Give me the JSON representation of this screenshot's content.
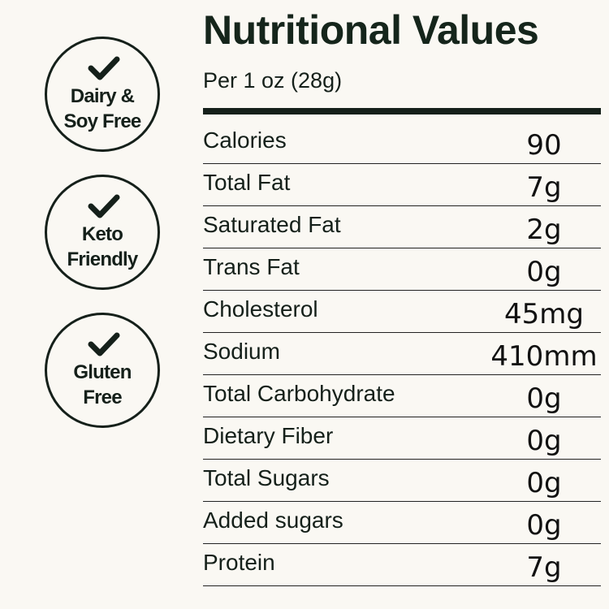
{
  "badges": [
    {
      "line1": "Dairy &",
      "line2": "Soy Free",
      "icon": "check-icon"
    },
    {
      "line1": "Keto",
      "line2": "Friendly",
      "icon": "check-icon"
    },
    {
      "line1": "Gluten",
      "line2": "Free",
      "icon": "check-icon"
    }
  ],
  "title": "Nutritional Values",
  "serving": "Per 1 oz (28g)",
  "rows": [
    {
      "name": "Calories",
      "value": "90"
    },
    {
      "name": "Total Fat",
      "value": "7g"
    },
    {
      "name": "Saturated Fat",
      "value": "2g"
    },
    {
      "name": "Trans Fat",
      "value": "0g"
    },
    {
      "name": "Cholesterol",
      "value": "45mg"
    },
    {
      "name": "Sodium",
      "value": "410mm"
    },
    {
      "name": "Total Carbohydrate",
      "value": "0g"
    },
    {
      "name": "Dietary Fiber",
      "value": "0g"
    },
    {
      "name": "Total Sugars",
      "value": "0g"
    },
    {
      "name": "Added sugars",
      "value": "0g"
    },
    {
      "name": "Protein",
      "value": "7g"
    }
  ],
  "colors": {
    "background": "#faf8f3",
    "ink": "#15201a"
  }
}
